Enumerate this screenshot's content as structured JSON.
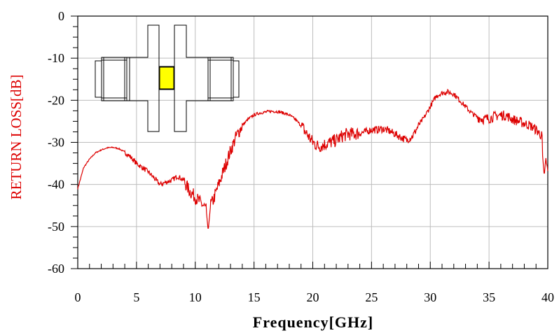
{
  "chart_data": {
    "type": "line",
    "xlabel": "Frequency[GHz]",
    "ylabel": "RETURN LOSS[dB]",
    "xlim": [
      0,
      40
    ],
    "ylim": [
      -60,
      0
    ],
    "x_ticks": [
      "0",
      "5",
      "10",
      "15",
      "20",
      "25",
      "30",
      "35",
      "40"
    ],
    "y_ticks": [
      "0",
      "-10",
      "-20",
      "-30",
      "-40",
      "-50",
      "-60"
    ],
    "grid": true,
    "colors": {
      "series": "#dd0000",
      "ylabel": "#dd0000",
      "xlabel": "#000000",
      "grid": "#bdbdbd",
      "insert_fill": "#ffff00"
    },
    "inset": "connector-cross-section-icon",
    "series": [
      {
        "x": [
          0,
          0.5,
          1,
          1.5,
          2,
          2.5,
          3,
          3.5,
          4,
          4.5,
          5,
          5.5,
          6,
          6.5,
          7,
          7.5,
          8,
          8.5,
          9,
          9.5,
          10,
          10.5,
          11,
          11.5,
          12,
          12.5,
          13,
          13.5,
          14,
          14.5,
          15,
          15.5,
          16,
          16.5,
          17,
          17.5,
          18,
          18.5,
          19,
          19.5,
          20,
          20.5,
          21,
          21.5,
          22,
          22.5,
          23,
          23.5,
          24,
          24.5,
          25,
          25.5,
          26,
          26.5,
          27,
          27.5,
          28,
          28.5,
          29,
          29.5,
          30,
          30.5,
          31,
          31.5,
          32,
          32.5,
          33,
          33.5,
          34,
          34.5,
          35,
          35.5,
          36,
          36.5,
          37,
          37.5,
          38,
          38.5,
          39,
          39.5,
          40
        ],
        "values": [
          -41,
          -36,
          -34,
          -32.5,
          -31.8,
          -31.3,
          -31.2,
          -31.5,
          -32.3,
          -33.5,
          -35,
          -36,
          -37,
          -38.5,
          -40,
          -39.5,
          -39,
          -38,
          -39,
          -41.5,
          -43,
          -44.5,
          -46,
          -44,
          -40,
          -36,
          -32,
          -28.5,
          -26,
          -24.5,
          -23.5,
          -23,
          -22.8,
          -22.6,
          -22.7,
          -23,
          -23.5,
          -24.5,
          -26,
          -28,
          -30,
          -31,
          -30.5,
          -30,
          -29.5,
          -28.5,
          -28,
          -28,
          -27.8,
          -27.5,
          -27,
          -27,
          -26.8,
          -27.3,
          -28,
          -28.8,
          -29.5,
          -28.5,
          -26,
          -24,
          -21.5,
          -19,
          -18.3,
          -18,
          -18.5,
          -20,
          -21.5,
          -23,
          -24,
          -24.5,
          -24.3,
          -23.8,
          -23.5,
          -23.7,
          -24.5,
          -25,
          -25.5,
          -26,
          -27,
          -28.5,
          -37
        ],
        "minima_dips": [
          {
            "x": 11.1,
            "y": -51
          },
          {
            "x": 39.7,
            "y": -38
          }
        ]
      }
    ]
  }
}
